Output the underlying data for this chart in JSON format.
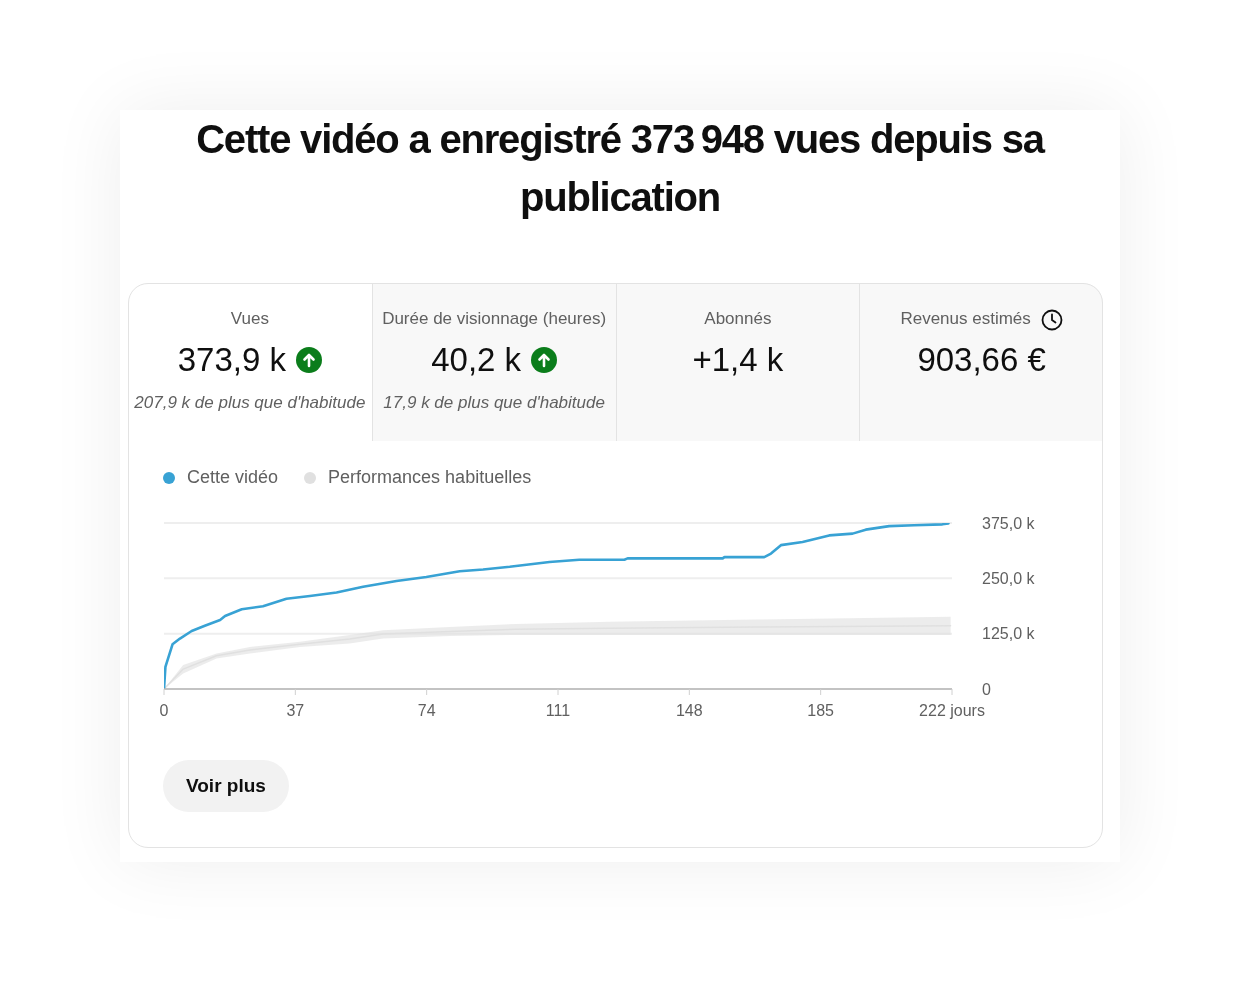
{
  "chart_data": [
    {
      "type": "other",
      "title": "Cette vidéo a enregistré 373 948 vues depuis sa publication",
      "categories": [
        "Vues",
        "Durée de visionnage (heures)",
        "Abonnés",
        "Revenus estimés"
      ],
      "value_labels": [
        "373,9 k",
        "40,2 k",
        "+1,4 k",
        "903,66 €"
      ],
      "annotations": [
        {
          "text": "207,9 k de plus que d'habitude",
          "x": "Vues"
        },
        {
          "text": "17,9 k de plus que d'habitude",
          "x": "Durée de visionnage (heures)"
        }
      ]
    },
    {
      "type": "line",
      "xlim": [
        0,
        222
      ],
      "xticks": [
        0,
        37,
        74,
        111,
        148,
        185,
        {
          "value": 222,
          "label": "222 jours"
        }
      ],
      "ylim": [
        0,
        375000
      ],
      "yticks": [
        0,
        {
          "value": 125000,
          "label": "125,0 k"
        },
        {
          "value": 250000,
          "label": "250,0 k"
        },
        {
          "value": 375000,
          "label": "375,0 k"
        }
      ],
      "grid": "y",
      "legend": "top left",
      "line_style": "solid",
      "series": [
        {
          "name": "Cette vidéo",
          "color": "#38a2d4",
          "x": [
            0,
            0.4,
            2.4,
            4.5,
            7.8,
            11.5,
            15.8,
            17.2,
            21.9,
            27.9,
            34.5,
            41.1,
            48.6,
            56.1,
            65.5,
            73.9,
            83.3,
            89.9,
            97.4,
            108.6,
            117,
            129.7,
            130.6,
            157.4,
            157.9,
            169.1,
            171,
            173.8,
            179.9,
            187.4,
            194,
            197.7,
            204.3,
            211.3,
            219.3,
            221
          ],
          "values": [
            0,
            50000,
            101000,
            114000,
            131000,
            143000,
            156000,
            165000,
            180000,
            187000,
            204000,
            210000,
            218000,
            231000,
            244000,
            253000,
            266000,
            270000,
            276000,
            287000,
            292000,
            292000,
            295000,
            295000,
            298000,
            298000,
            306000,
            325000,
            332000,
            347000,
            351000,
            360000,
            368000,
            370000,
            372000,
            374000
          ]
        },
        {
          "name": "Performances habituelles",
          "color": "#e0e0e0",
          "x": [
            0,
            5.4,
            14.8,
            24.2,
            38.3,
            52.3,
            61.7,
            80.5,
            99.2,
            125.5,
            166.8,
            221.6
          ],
          "values": [
            0,
            45000,
            75000,
            88000,
            101000,
            113000,
            124000,
            130000,
            135000,
            137000,
            140000,
            143000
          ],
          "lower": [
            0,
            35000,
            69000,
            80000,
            95000,
            103000,
            114000,
            120000,
            122000,
            122000,
            122000,
            122000
          ],
          "upper": [
            0,
            54000,
            80000,
            95000,
            107000,
            122000,
            133000,
            140000,
            147000,
            152000,
            157000,
            163000
          ]
        }
      ],
      "annotations": [
        "Voir plus"
      ]
    }
  ]
}
